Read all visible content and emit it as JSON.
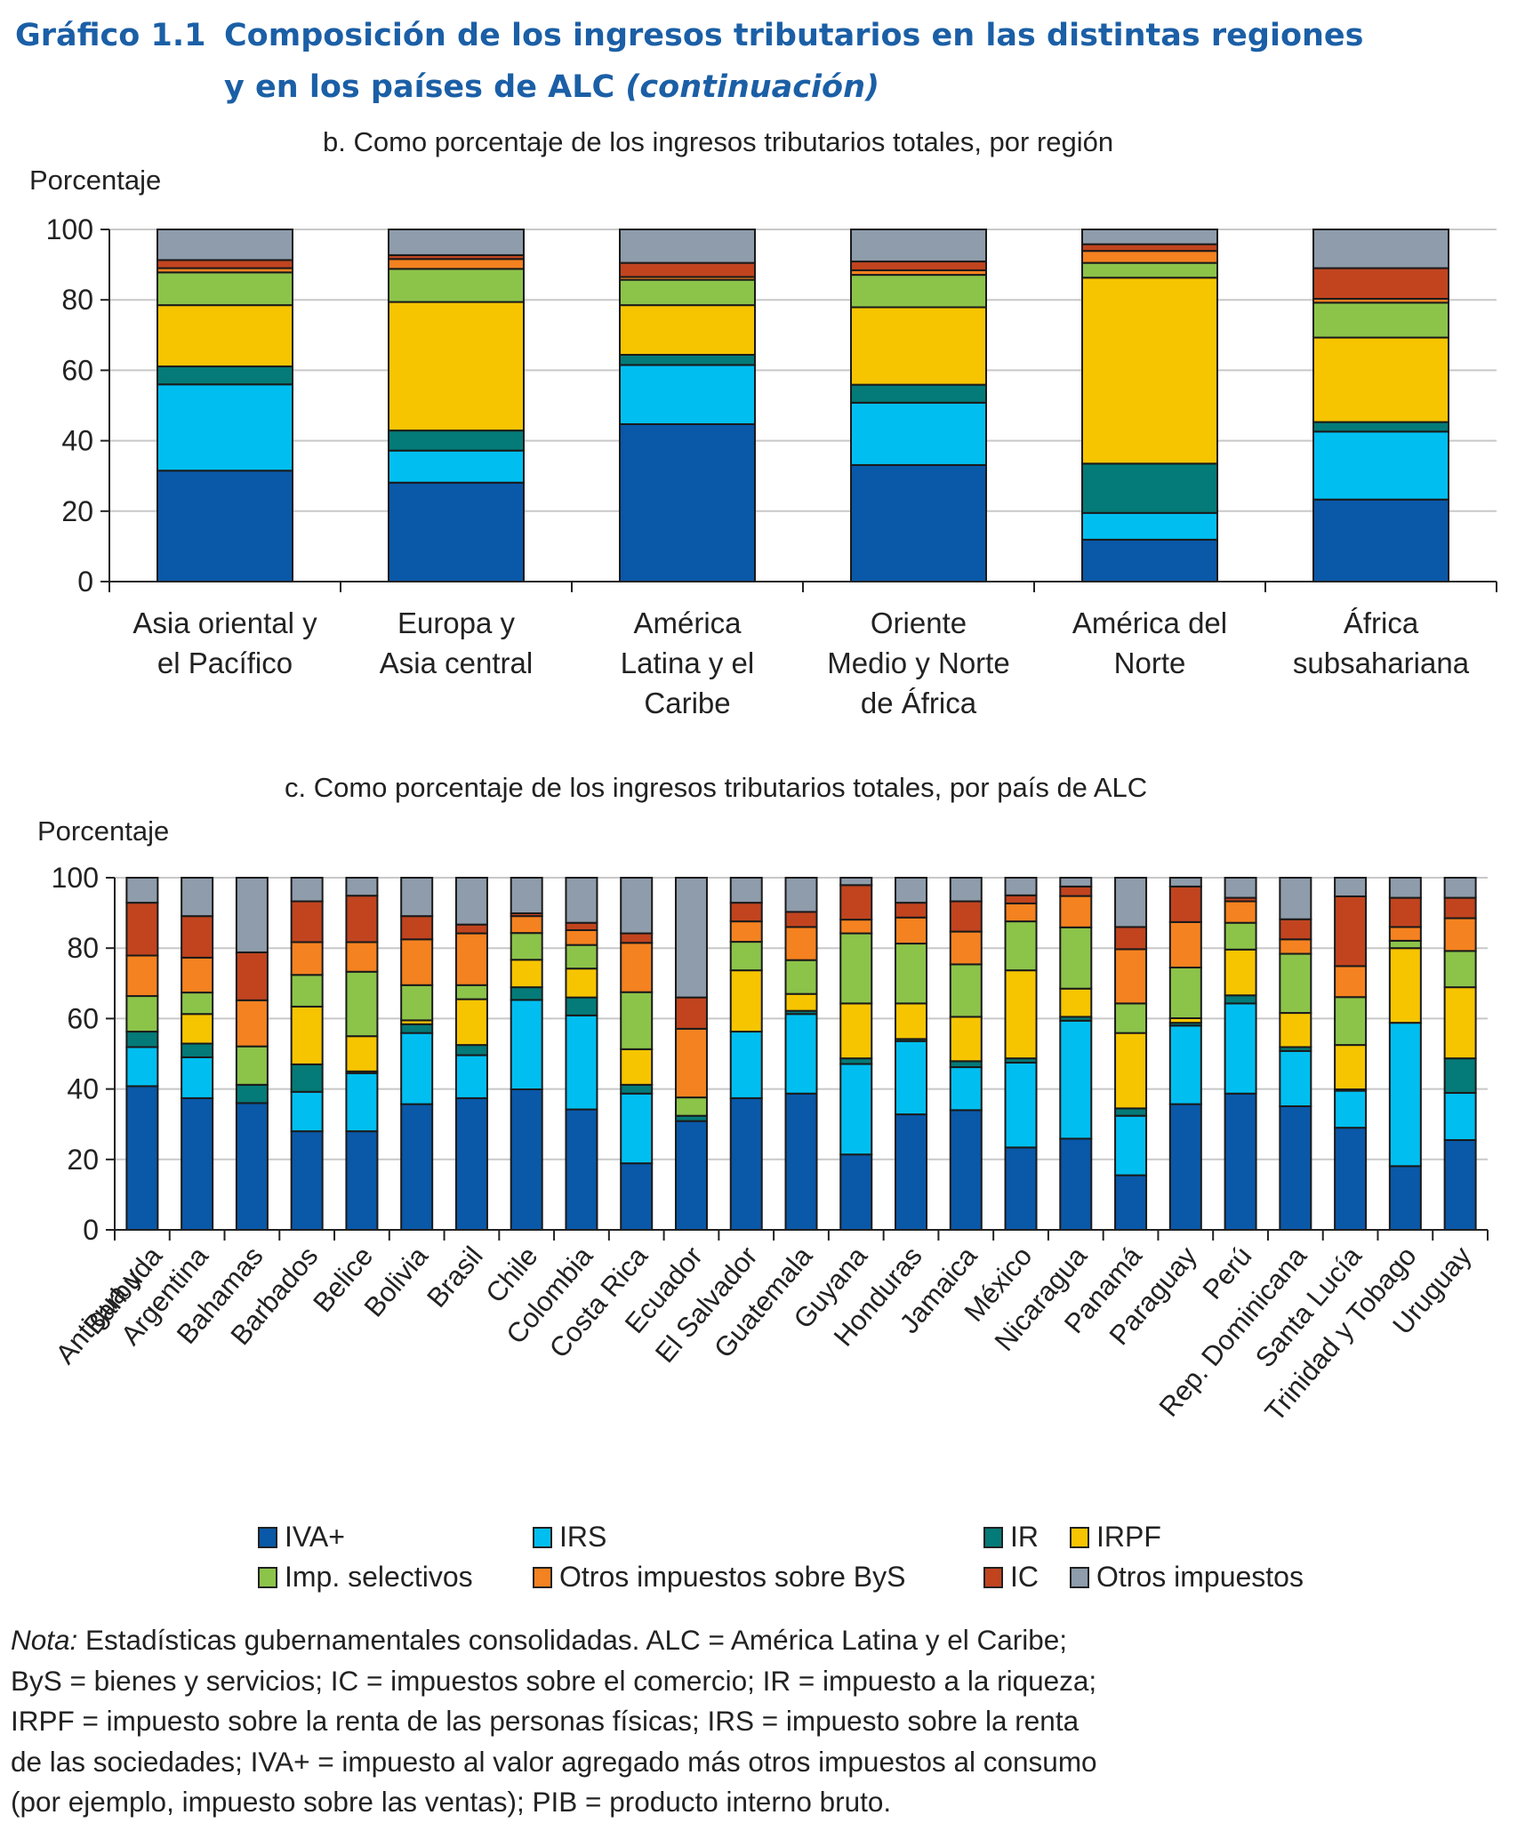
{
  "figure": {
    "number": "Gráfico 1.1",
    "title_line1": "Composición de los ingresos tributarios en las distintas regiones",
    "title_line2": "y en los países de ALC",
    "title_suffix": "(continuación)"
  },
  "legend": {
    "items": [
      {
        "key": "iva",
        "label": "IVA+",
        "color": "#0a58a8"
      },
      {
        "key": "irs",
        "label": "IRS",
        "color": "#00bff0"
      },
      {
        "key": "ir",
        "label": "IR",
        "color": "#047b78"
      },
      {
        "key": "irpf",
        "label": "IRPF",
        "color": "#f7c500"
      },
      {
        "key": "sel",
        "label": "Imp. selectivos",
        "color": "#8cc44a"
      },
      {
        "key": "bys",
        "label": "Otros impuestos sobre ByS",
        "color": "#f58220"
      },
      {
        "key": "ic",
        "label": "IC",
        "color": "#c1441f"
      },
      {
        "key": "otros",
        "label": "Otros impuestos",
        "color": "#8e9cab"
      }
    ]
  },
  "note": {
    "label": "Nota:",
    "lines": [
      " Estadísticas gubernamentales consolidadas. ALC = América Latina y el Caribe;",
      "ByS = bienes y servicios; IC = impuestos sobre el comercio; IR = impuesto a la riqueza;",
      "IRPF = impuesto sobre la renta de las personas físicas; IRS = impuesto sobre la renta",
      "de las sociedades; IVA+ = impuesto al valor agregado más otros impuestos al consumo",
      "(por ejemplo, impuesto sobre las ventas); PIB = producto interno bruto."
    ]
  },
  "chart_data": [
    {
      "type": "bar",
      "stacked": true,
      "title": "b. Como porcentaje de los ingresos tributarios totales, por región",
      "xlabel": "",
      "ylabel": "Porcentaje",
      "ylim": [
        0,
        100
      ],
      "yticks": [
        0,
        20,
        40,
        60,
        80,
        100
      ],
      "grid": true,
      "categories": [
        [
          "Asia oriental y",
          "el Pacífico"
        ],
        [
          "Europa y",
          "Asia central"
        ],
        [
          "América",
          "Latina y el",
          "Caribe"
        ],
        [
          "Oriente",
          "Medio y Norte",
          "de África"
        ],
        [
          "América del",
          "Norte"
        ],
        [
          "África",
          "subsahariana"
        ]
      ],
      "series": [
        {
          "name": "IVA+",
          "values": [
            31.5,
            28.1,
            44.7,
            33.1,
            11.9,
            23.3
          ]
        },
        {
          "name": "IRS",
          "values": [
            24.5,
            9.1,
            16.8,
            17.7,
            7.6,
            19.3
          ]
        },
        {
          "name": "IR",
          "values": [
            5.1,
            5.7,
            2.9,
            5.1,
            14.0,
            2.7
          ]
        },
        {
          "name": "IRPF",
          "values": [
            17.4,
            36.5,
            14.1,
            22.0,
            52.8,
            24.0
          ]
        },
        {
          "name": "Imp. selectivos",
          "values": [
            9.3,
            9.4,
            7.2,
            9.2,
            4.2,
            9.9
          ]
        },
        {
          "name": "Otros impuestos sobre ByS",
          "values": [
            1.2,
            2.8,
            0.8,
            1.3,
            3.4,
            1.1
          ]
        },
        {
          "name": "IC",
          "values": [
            2.3,
            1.1,
            4.0,
            2.5,
            1.9,
            8.7
          ]
        },
        {
          "name": "Otros impuestos",
          "values": [
            8.7,
            7.3,
            9.5,
            9.1,
            4.2,
            11.0
          ]
        }
      ]
    },
    {
      "type": "bar",
      "stacked": true,
      "title": "c. Como porcentaje de los ingresos tributarios totales, por país de ALC",
      "xlabel": "",
      "ylabel": "Porcentaje",
      "ylim": [
        0,
        100
      ],
      "yticks": [
        0,
        20,
        40,
        60,
        80,
        100
      ],
      "grid": true,
      "legend_position": "bottom",
      "categories": [
        [
          "Antigua y",
          "Barbuda"
        ],
        [
          "Argentina"
        ],
        [
          "Bahamas"
        ],
        [
          "Barbados"
        ],
        [
          "Belice"
        ],
        [
          "Bolivia"
        ],
        [
          "Brasil"
        ],
        [
          "Chile"
        ],
        [
          "Colombia"
        ],
        [
          "Costa Rica"
        ],
        [
          "Ecuador"
        ],
        [
          "El Salvador"
        ],
        [
          "Guatemala"
        ],
        [
          "Guyana"
        ],
        [
          "Honduras"
        ],
        [
          "Jamaica"
        ],
        [
          "México"
        ],
        [
          "Nicaragua"
        ],
        [
          "Panamá"
        ],
        [
          "Paraguay"
        ],
        [
          "Perú"
        ],
        [
          "Rep. Dominicana"
        ],
        [
          "Santa Lucía"
        ],
        [
          "Trinidad y Tobago"
        ],
        [
          "Uruguay"
        ]
      ],
      "series": [
        {
          "name": "IVA+",
          "values": [
            40.8,
            37.4,
            36.0,
            28.0,
            28.0,
            35.7,
            37.4,
            39.9,
            34.2,
            18.9,
            30.9,
            37.4,
            38.7,
            21.4,
            32.8,
            34.0,
            23.4,
            25.9,
            15.5,
            35.7,
            38.7,
            35.1,
            29.0,
            18.1,
            25.5
          ]
        },
        {
          "name": "IRS",
          "values": [
            11.1,
            11.6,
            0,
            11.2,
            16.5,
            20.2,
            12.2,
            25.4,
            26.7,
            19.8,
            0,
            18.9,
            22.6,
            25.7,
            20.8,
            12.2,
            24.1,
            33.5,
            16.9,
            22.3,
            25.6,
            15.7,
            10.5,
            40.7,
            13.4
          ]
        },
        {
          "name": "IR",
          "values": [
            4.4,
            3.9,
            5.2,
            7.8,
            0.5,
            2.5,
            2.9,
            3.6,
            5.1,
            2.5,
            1.5,
            0,
            0.9,
            1.6,
            0.6,
            1.7,
            1.2,
            1.1,
            2.1,
            0.8,
            2.3,
            1.1,
            0.4,
            0,
            9.8
          ]
        },
        {
          "name": "IRPF",
          "values": [
            0,
            8.4,
            0,
            16.4,
            10.0,
            1.1,
            13.0,
            7.8,
            8.2,
            10.1,
            0,
            17.4,
            4.8,
            15.6,
            10.1,
            12.6,
            25.0,
            8.0,
            21.4,
            1.3,
            13.0,
            9.7,
            12.6,
            21.2,
            20.2
          ]
        },
        {
          "name": "Imp. selectivos",
          "values": [
            10.1,
            6.1,
            10.9,
            9.0,
            18.3,
            10.0,
            4.0,
            7.6,
            6.7,
            16.2,
            5.2,
            8.1,
            9.6,
            19.9,
            17.0,
            14.9,
            13.9,
            17.4,
            8.4,
            14.4,
            7.6,
            16.8,
            13.6,
            2.1,
            10.3
          ]
        },
        {
          "name": "Otros impuestos sobre ByS",
          "values": [
            11.5,
            9.9,
            13.1,
            9.3,
            8.4,
            13.0,
            14.7,
            4.8,
            4.2,
            14.0,
            19.5,
            5.8,
            9.4,
            3.9,
            7.4,
            9.3,
            5.1,
            8.9,
            15.4,
            12.9,
            6.1,
            4.1,
            8.8,
            3.9,
            9.3
          ]
        },
        {
          "name": "IC",
          "values": [
            15.0,
            11.8,
            13.6,
            11.6,
            13.2,
            6.6,
            2.5,
            0.8,
            2.1,
            2.7,
            8.9,
            5.3,
            4.3,
            9.8,
            4.2,
            8.6,
            2.3,
            2.7,
            6.3,
            10.1,
            1.0,
            5.7,
            19.8,
            8.3,
            5.8
          ]
        },
        {
          "name": "Otros impuestos",
          "values": [
            7.1,
            10.9,
            21.2,
            6.7,
            5.1,
            10.9,
            13.3,
            10.1,
            12.8,
            15.8,
            34.0,
            7.1,
            9.7,
            2.1,
            7.1,
            6.7,
            5.0,
            2.5,
            14.0,
            2.5,
            5.7,
            11.8,
            5.3,
            5.7,
            5.7
          ]
        }
      ]
    }
  ]
}
